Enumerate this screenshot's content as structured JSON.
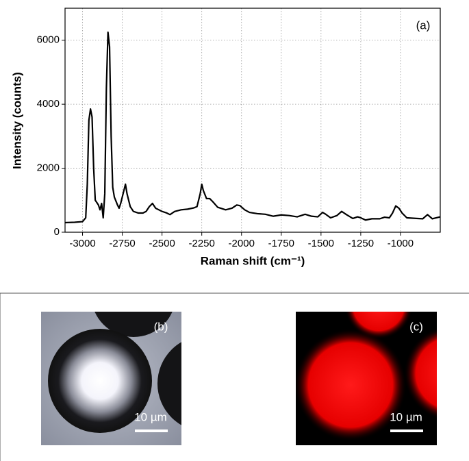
{
  "chart_data": {
    "type": "line",
    "annotation": "(a)",
    "x_label": "Raman shift (cm⁻¹)",
    "y_label": "Intensity (counts)",
    "x": [
      -3110,
      -3050,
      -3000,
      -2980,
      -2970,
      -2960,
      -2950,
      -2940,
      -2930,
      -2920,
      -2900,
      -2890,
      -2880,
      -2870,
      -2860,
      -2850,
      -2840,
      -2830,
      -2820,
      -2810,
      -2800,
      -2780,
      -2770,
      -2760,
      -2740,
      -2730,
      -2720,
      -2700,
      -2680,
      -2650,
      -2620,
      -2600,
      -2580,
      -2560,
      -2540,
      -2520,
      -2500,
      -2470,
      -2450,
      -2420,
      -2380,
      -2340,
      -2300,
      -2280,
      -2260,
      -2250,
      -2240,
      -2220,
      -2200,
      -2180,
      -2150,
      -2100,
      -2060,
      -2030,
      -2010,
      -1980,
      -1950,
      -1900,
      -1850,
      -1800,
      -1750,
      -1700,
      -1650,
      -1600,
      -1560,
      -1520,
      -1490,
      -1470,
      -1440,
      -1400,
      -1370,
      -1340,
      -1300,
      -1270,
      -1250,
      -1220,
      -1180,
      -1130,
      -1100,
      -1070,
      -1050,
      -1030,
      -1010,
      -990,
      -960,
      -900,
      -860,
      -830,
      -800,
      -750
    ],
    "values": [
      300,
      310,
      330,
      450,
      1500,
      3500,
      3850,
      3600,
      2000,
      1000,
      850,
      700,
      900,
      450,
      1200,
      4500,
      6250,
      5800,
      3000,
      1400,
      1100,
      850,
      750,
      900,
      1300,
      1500,
      1200,
      800,
      650,
      600,
      600,
      650,
      800,
      900,
      750,
      700,
      650,
      600,
      550,
      650,
      700,
      720,
      760,
      800,
      1200,
      1500,
      1300,
      1050,
      1050,
      950,
      780,
      700,
      750,
      850,
      830,
      700,
      620,
      580,
      560,
      500,
      540,
      520,
      480,
      560,
      500,
      480,
      620,
      560,
      450,
      520,
      650,
      550,
      430,
      480,
      450,
      380,
      420,
      420,
      470,
      450,
      600,
      820,
      750,
      600,
      450,
      430,
      420,
      550,
      420,
      480
    ],
    "color": "#000000",
    "xlim": [
      -3110,
      -750
    ],
    "ylim": [
      0,
      7000
    ],
    "xticks": [
      -3000,
      -2750,
      -2500,
      -2250,
      -2000,
      -1750,
      -1500,
      -1250,
      -1000
    ],
    "yticks": [
      0,
      2000,
      4000,
      6000
    ],
    "grid": true
  },
  "panels": [
    {
      "label": "(b)",
      "scale_bar": "10 µm"
    },
    {
      "label": "(c)",
      "scale_bar": "10 µm"
    }
  ]
}
